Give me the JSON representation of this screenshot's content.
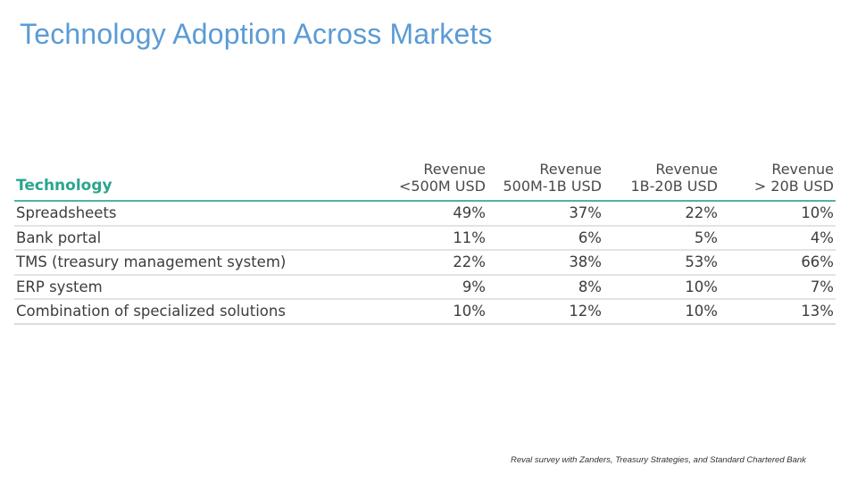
{
  "title": "Technology Adoption Across Markets",
  "table": {
    "header": {
      "technology": "Technology",
      "columns": [
        {
          "line1": "Revenue",
          "line2": "<500M USD"
        },
        {
          "line1": "Revenue",
          "line2": "500M-1B USD"
        },
        {
          "line1": "Revenue",
          "line2": "1B-20B USD"
        },
        {
          "line1": "Revenue",
          "line2": "> 20B USD"
        }
      ]
    },
    "rows": [
      {
        "label": "Spreadsheets",
        "values": [
          "49%",
          "37%",
          "22%",
          "10%"
        ]
      },
      {
        "label": "Bank portal",
        "values": [
          "11%",
          "6%",
          "5%",
          "4%"
        ]
      },
      {
        "label": "TMS (treasury management system)",
        "values": [
          "22%",
          "38%",
          "53%",
          "66%"
        ]
      },
      {
        "label": "ERP system",
        "values": [
          "9%",
          "8%",
          "10%",
          "7%"
        ]
      },
      {
        "label": "Combination of specialized solutions",
        "values": [
          "10%",
          "12%",
          "10%",
          "13%"
        ]
      }
    ]
  },
  "source": "Reval survey with Zanders, Treasury Strategies, and Standard Chartered Bank",
  "colors": {
    "title": "#5B9BD5",
    "header_accent": "#2AA58E",
    "header_rule": "#4FB3A4",
    "row_rule": "#E3E3E3"
  }
}
